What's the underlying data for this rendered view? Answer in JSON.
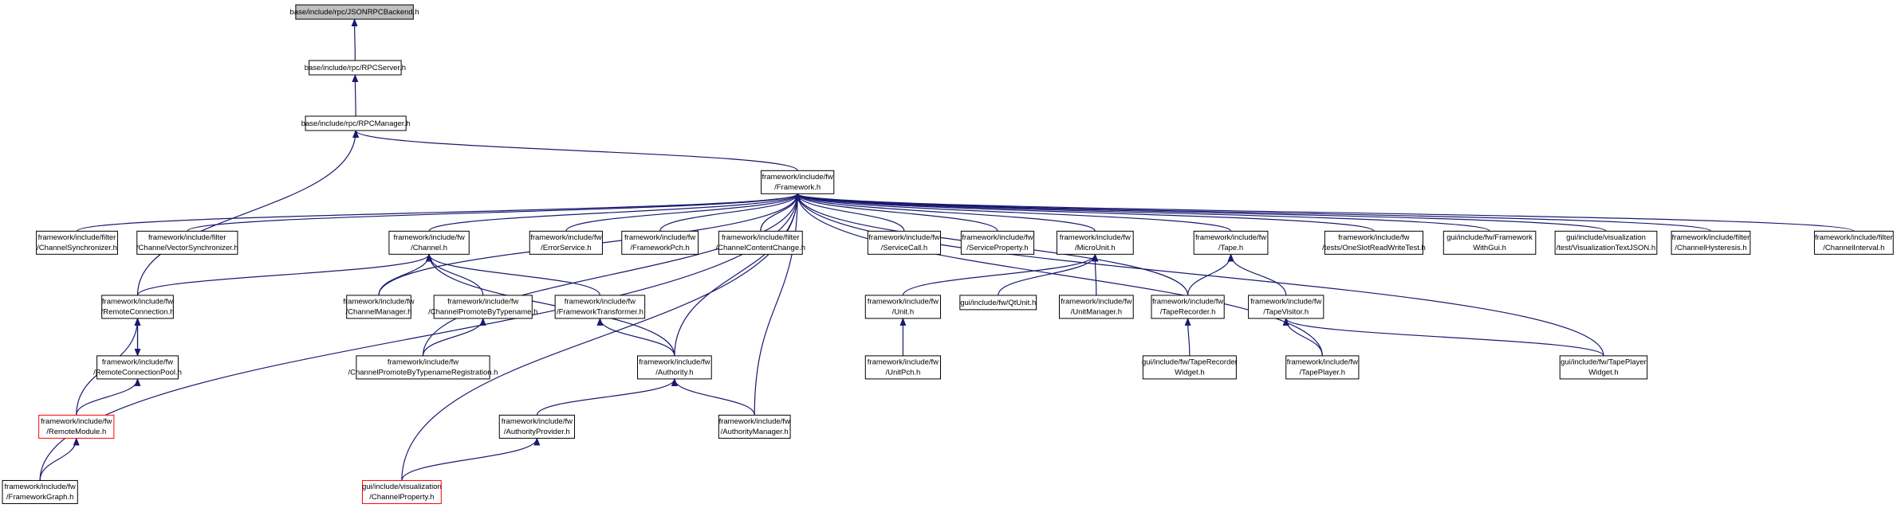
{
  "nodes": [
    {
      "lines": [
        "base/include/rpc/JSONRPCBackend.h"
      ]
    },
    {
      "lines": [
        "base/include/rpc/RPCServer.h"
      ]
    },
    {
      "lines": [
        "base/include/rpc/RPCManager.h"
      ]
    },
    {
      "lines": [
        "framework/include/fw",
        "/Framework.h"
      ]
    },
    {
      "lines": [
        "framework/include/filter",
        "/ChannelSynchronizer.h"
      ]
    },
    {
      "lines": [
        "framework/include/filter",
        "/ChannelVectorSynchronizer.h"
      ]
    },
    {
      "lines": [
        "framework/include/fw",
        "/Channel.h"
      ]
    },
    {
      "lines": [
        "framework/include/fw",
        "/ErrorService.h"
      ]
    },
    {
      "lines": [
        "framework/include/fw",
        "/FrameworkPch.h"
      ]
    },
    {
      "lines": [
        "framework/include/filter",
        "/ChannelContentChange.h"
      ]
    },
    {
      "lines": [
        "framework/include/fw",
        "/ServiceCall.h"
      ]
    },
    {
      "lines": [
        "framework/include/fw",
        "/ServiceProperty.h"
      ]
    },
    {
      "lines": [
        "framework/include/fw",
        "/MicroUnit.h"
      ]
    },
    {
      "lines": [
        "framework/include/fw",
        "/Tape.h"
      ]
    },
    {
      "lines": [
        "framework/include/fw",
        "/tests/OneSlotReadWriteTest.h"
      ]
    },
    {
      "lines": [
        "gui/include/fw/Framework",
        "WithGui.h"
      ]
    },
    {
      "lines": [
        "gui/include/visualization",
        "/test/VisualizationTextJSON.h"
      ]
    },
    {
      "lines": [
        "framework/include/filter",
        "/ChannelHysteresis.h"
      ]
    },
    {
      "lines": [
        "framework/include/filter",
        "/ChannelInterval.h"
      ]
    },
    {
      "lines": [
        "framework/include/fw",
        "/RemoteConnection.h"
      ]
    },
    {
      "lines": [
        "framework/include/fw",
        "/ChannelManager.h"
      ]
    },
    {
      "lines": [
        "framework/include/fw",
        "/ChannelPromoteByTypename.h"
      ]
    },
    {
      "lines": [
        "framework/include/fw",
        "/FrameworkTransformer.h"
      ]
    },
    {
      "lines": [
        "framework/include/fw",
        "/Unit.h"
      ]
    },
    {
      "lines": [
        "gui/include/fw/QtUnit.h"
      ]
    },
    {
      "lines": [
        "framework/include/fw",
        "/UnitManager.h"
      ]
    },
    {
      "lines": [
        "framework/include/fw",
        "/TapeRecorder.h"
      ]
    },
    {
      "lines": [
        "framework/include/fw",
        "/TapeVisitor.h"
      ]
    },
    {
      "lines": [
        "framework/include/fw",
        "/RemoteConnectionPool.h"
      ]
    },
    {
      "lines": [
        "framework/include/fw",
        "/ChannelPromoteByTypenameRegistration.h"
      ]
    },
    {
      "lines": [
        "framework/include/fw",
        "/Authority.h"
      ]
    },
    {
      "lines": [
        "framework/include/fw",
        "/UnitPch.h"
      ]
    },
    {
      "lines": [
        "gui/include/fw/TapeRecorder",
        "Widget.h"
      ]
    },
    {
      "lines": [
        "framework/include/fw",
        "/TapePlayer.h"
      ]
    },
    {
      "lines": [
        "gui/include/fw/TapePlayer",
        "Widget.h"
      ]
    },
    {
      "lines": [
        "framework/include/fw",
        "/RemoteModule.h"
      ]
    },
    {
      "lines": [
        "framework/include/fw",
        "/AuthorityProvider.h"
      ]
    },
    {
      "lines": [
        "framework/include/fw",
        "/AuthorityManager.h"
      ]
    },
    {
      "lines": [
        "framework/include/fw",
        "/FrameworkGraph.h"
      ]
    },
    {
      "lines": [
        "gui/include/visualization",
        "/ChannelProperty.h"
      ]
    }
  ]
}
